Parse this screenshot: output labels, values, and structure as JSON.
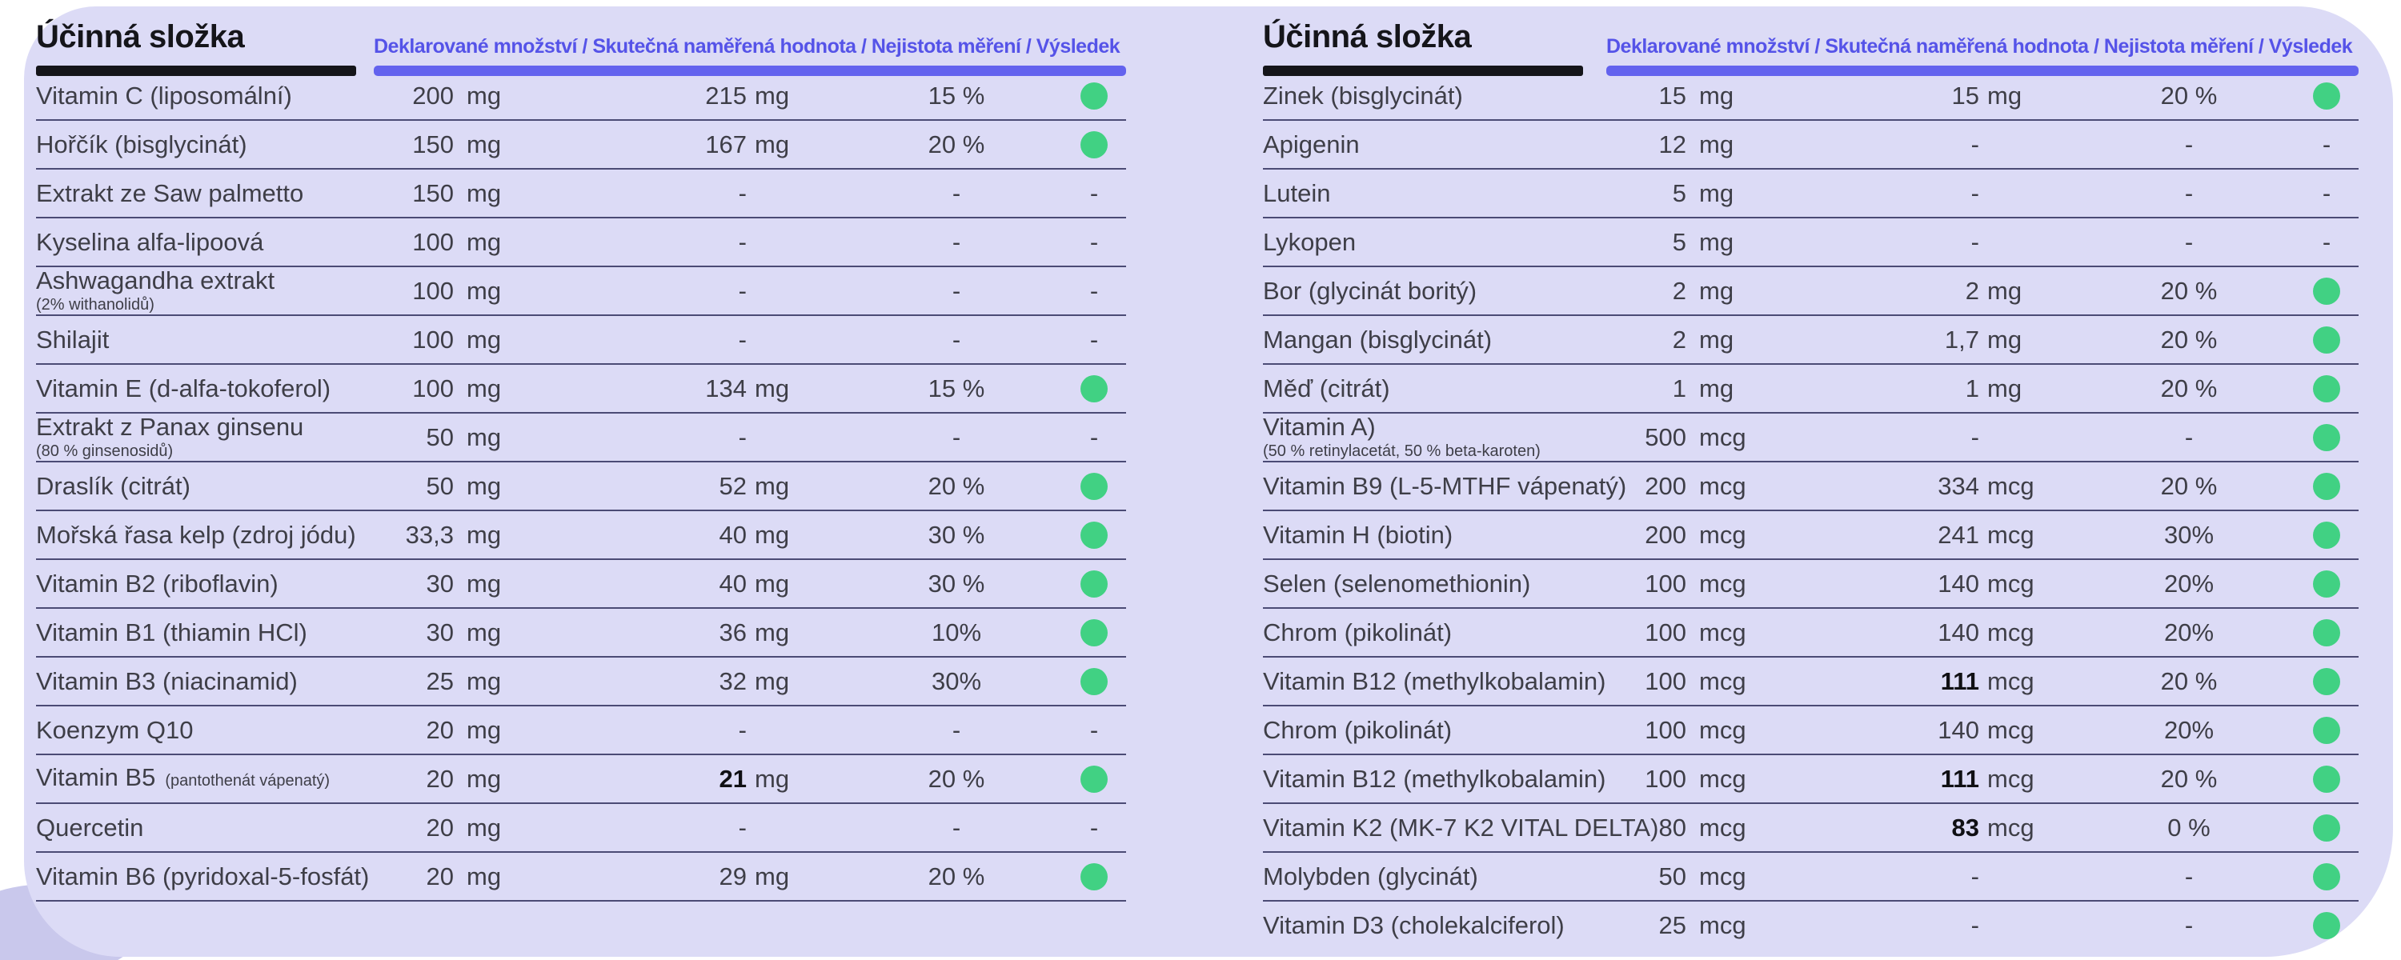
{
  "colors": {
    "panel_background": "#dcdbf6",
    "corner_accent": "#c9c8ec",
    "accent_purple_bar": "#6362ee",
    "accent_purple_text": "#5553e8",
    "pass_green": "#41d183",
    "title_black": "#15151a",
    "row_text": "#3e3e47",
    "separator": "#4b4b75"
  },
  "icons": {
    "pass_dot": "green-circle"
  },
  "chart_data": [
    {
      "type": "table",
      "title": "Účinná složka",
      "columns_header": "Deklarované množství / Skutečná naměřená hodnota / Nejistota měření / Výsledek",
      "columns": [
        "Účinná složka",
        "Deklarované množství",
        "Skutečná naměřená hodnota",
        "Nejistota měření",
        "Výsledek"
      ],
      "rows": [
        {
          "label": "Vitamin C (liposomální)",
          "declared": "200",
          "declared_unit": "mg",
          "measured": "215",
          "measured_unit": "mg",
          "uncertainty": "15 %",
          "result": "pass"
        },
        {
          "label": "Hořčík (bisglycinát)",
          "declared": "150",
          "declared_unit": "mg",
          "measured": "167",
          "measured_unit": "mg",
          "uncertainty": "20 %",
          "result": "pass"
        },
        {
          "label": "Extrakt ze Saw palmetto",
          "declared": "150",
          "declared_unit": "mg",
          "measured": "-",
          "measured_unit": "",
          "uncertainty": "-",
          "result": "-"
        },
        {
          "label": "Kyselina alfa-lipoová",
          "declared": "100",
          "declared_unit": "mg",
          "measured": "-",
          "measured_unit": "",
          "uncertainty": "-",
          "result": "-"
        },
        {
          "label": "Ashwagandha extrakt",
          "sublabel": "(2% withanolidů)",
          "declared": "100",
          "declared_unit": "mg",
          "measured": "-",
          "measured_unit": "",
          "uncertainty": "-",
          "result": "-"
        },
        {
          "label": "Shilajit",
          "declared": "100",
          "declared_unit": "mg",
          "measured": "-",
          "measured_unit": "",
          "uncertainty": "-",
          "result": "-"
        },
        {
          "label": "Vitamin E (d-alfa-tokoferol)",
          "declared": "100",
          "declared_unit": "mg",
          "measured": "134",
          "measured_unit": "mg",
          "uncertainty": "15 %",
          "result": "pass"
        },
        {
          "label": "Extrakt z Panax ginsenu",
          "sublabel": "(80 % ginsenosidů)",
          "declared": "50",
          "declared_unit": "mg",
          "measured": "-",
          "measured_unit": "",
          "uncertainty": "-",
          "result": "-"
        },
        {
          "label": "Draslík (citrát)",
          "declared": "50",
          "declared_unit": "mg",
          "measured": "52",
          "measured_unit": "mg",
          "uncertainty": "20 %",
          "result": "pass"
        },
        {
          "label": "Mořská řasa kelp (zdroj jódu)",
          "declared": "33,3",
          "declared_unit": "mg",
          "measured": "40",
          "measured_unit": "mg",
          "uncertainty": "30 %",
          "result": "pass"
        },
        {
          "label": "Vitamin B2 (riboflavin)",
          "declared": "30",
          "declared_unit": "mg",
          "measured": "40",
          "measured_unit": "mg",
          "uncertainty": "30 %",
          "result": "pass"
        },
        {
          "label": "Vitamin B1 (thiamin HCl)",
          "declared": "30",
          "declared_unit": "mg",
          "measured": "36",
          "measured_unit": "mg",
          "uncertainty": "10%",
          "result": "pass"
        },
        {
          "label": "Vitamin B3 (niacinamid)",
          "declared": "25",
          "declared_unit": "mg",
          "measured": "32",
          "measured_unit": "mg",
          "uncertainty": "30%",
          "result": "pass"
        },
        {
          "label": "Koenzym Q10",
          "declared": "20",
          "declared_unit": "mg",
          "measured": "-",
          "measured_unit": "",
          "uncertainty": "-",
          "result": "-"
        },
        {
          "label": "Vitamin B5",
          "sublabel_inline": "(pantothenát vápenatý)",
          "declared": "20",
          "declared_unit": "mg",
          "measured": "21",
          "measured_bold": true,
          "measured_unit": "mg",
          "uncertainty": "20 %",
          "result": "pass"
        },
        {
          "label": "Quercetin",
          "declared": "20",
          "declared_unit": "mg",
          "measured": "-",
          "measured_unit": "",
          "uncertainty": "-",
          "result": "-"
        },
        {
          "label": "Vitamin B6 (pyridoxal-5-fosfát)",
          "declared": "20",
          "declared_unit": "mg",
          "measured": "29",
          "measured_unit": "mg",
          "uncertainty": "20 %",
          "result": "pass"
        }
      ]
    },
    {
      "type": "table",
      "title": "Účinná složka",
      "columns_header": "Deklarované množství / Skutečná naměřená hodnota / Nejistota měření / Výsledek",
      "columns": [
        "Účinná složka",
        "Deklarované množství",
        "Skutečná naměřená hodnota",
        "Nejistota měření",
        "Výsledek"
      ],
      "rows": [
        {
          "label": "Zinek (bisglycinát)",
          "declared": "15",
          "declared_unit": "mg",
          "measured": "15",
          "measured_unit": "mg",
          "uncertainty": "20 %",
          "result": "pass"
        },
        {
          "label": "Apigenin",
          "declared": "12",
          "declared_unit": "mg",
          "measured": "-",
          "measured_unit": "",
          "uncertainty": "-",
          "result": "-"
        },
        {
          "label": "Lutein",
          "declared": "5",
          "declared_unit": "mg",
          "measured": "-",
          "measured_unit": "",
          "uncertainty": "-",
          "result": "-"
        },
        {
          "label": "Lykopen",
          "declared": "5",
          "declared_unit": "mg",
          "measured": "-",
          "measured_unit": "",
          "uncertainty": "-",
          "result": "-"
        },
        {
          "label": "Bor (glycinát boritý)",
          "declared": "2",
          "declared_unit": "mg",
          "measured": "2",
          "measured_unit": "mg",
          "uncertainty": "20 %",
          "result": "pass"
        },
        {
          "label": "Mangan (bisglycinát)",
          "declared": "2",
          "declared_unit": "mg",
          "measured": "1,7",
          "measured_unit": "mg",
          "uncertainty": "20 %",
          "result": "pass"
        },
        {
          "label": "Měď (citrát)",
          "declared": "1",
          "declared_unit": "mg",
          "measured": "1",
          "measured_unit": "mg",
          "uncertainty": "20 %",
          "result": "pass"
        },
        {
          "label": "Vitamin A)",
          "sublabel": "(50 % retinylacetát, 50 % beta-karoten)",
          "declared": "500",
          "declared_unit": "mcg",
          "measured": "-",
          "measured_unit": "",
          "uncertainty": "-",
          "result": "pass"
        },
        {
          "label": "Vitamin B9 (L-5-MTHF vápenatý)",
          "declared": "200",
          "declared_unit": "mcg",
          "measured": "334",
          "measured_unit": "mcg",
          "uncertainty": "20 %",
          "result": "pass"
        },
        {
          "label": "Vitamin H (biotin)",
          "declared": "200",
          "declared_unit": "mcg",
          "measured": "241",
          "measured_unit": "mcg",
          "uncertainty": "30%",
          "result": "pass"
        },
        {
          "label": "Selen (selenomethionin)",
          "declared": "100",
          "declared_unit": "mcg",
          "measured": "140",
          "measured_unit": "mcg",
          "uncertainty": "20%",
          "result": "pass"
        },
        {
          "label": "Chrom (pikolinát)",
          "declared": "100",
          "declared_unit": "mcg",
          "measured": "140",
          "measured_unit": "mcg",
          "uncertainty": "20%",
          "result": "pass"
        },
        {
          "label": "Vitamin B12 (methylkobalamin)",
          "declared": "100",
          "declared_unit": "mcg",
          "measured": "111",
          "measured_bold": true,
          "measured_unit": "mcg",
          "uncertainty": "20 %",
          "result": "pass"
        },
        {
          "label": "Chrom (pikolinát)",
          "declared": "100",
          "declared_unit": "mcg",
          "measured": "140",
          "measured_unit": "mcg",
          "uncertainty": "20%",
          "result": "pass"
        },
        {
          "label": "Vitamin B12 (methylkobalamin)",
          "declared": "100",
          "declared_unit": "mcg",
          "measured": "111",
          "measured_bold": true,
          "measured_unit": "mcg",
          "uncertainty": "20 %",
          "result": "pass"
        },
        {
          "label": "Vitamin K2 (MK-7 K2 VITAL DELTA)",
          "declared": "80",
          "declared_unit": "mcg",
          "measured": "83",
          "measured_bold": true,
          "measured_unit": "mcg",
          "uncertainty": "0 %",
          "result": "pass"
        },
        {
          "label": "Molybden (glycinát)",
          "declared": "50",
          "declared_unit": "mcg",
          "measured": "-",
          "measured_unit": "",
          "uncertainty": "-",
          "result": "pass"
        },
        {
          "label": "Vitamin D3 (cholekalciferol)",
          "declared": "25",
          "declared_unit": "mcg",
          "measured": "-",
          "measured_unit": "",
          "uncertainty": "-",
          "result": "pass"
        }
      ]
    }
  ]
}
